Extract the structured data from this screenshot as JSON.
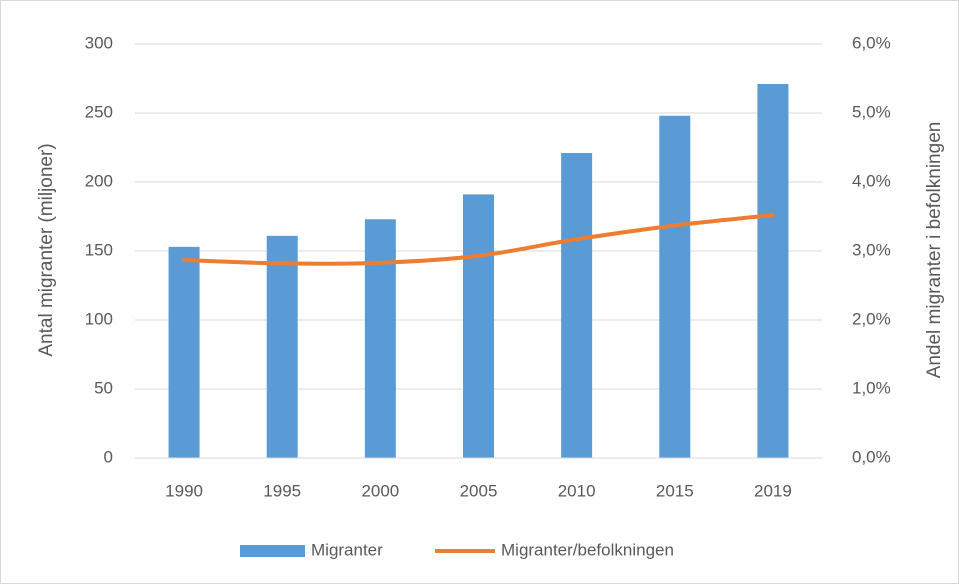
{
  "chart_data": {
    "type": "bar",
    "y_label": "Antal migranter (miljoner)",
    "y2_label": "Andel migranter i befolkningen",
    "categories": [
      "1990",
      "1995",
      "2000",
      "2005",
      "2010",
      "2015",
      "2019"
    ],
    "series": [
      {
        "name": "Migranter",
        "type": "bar",
        "color": "#5b9bd5",
        "values": [
          153,
          161,
          173,
          191,
          221,
          248,
          271
        ]
      },
      {
        "name": "Migranter/befolkningen",
        "type": "line",
        "axis": "y2",
        "color": "#ed7d31",
        "values": [
          2.87,
          2.82,
          2.83,
          2.93,
          3.17,
          3.37,
          3.52
        ]
      }
    ],
    "ylim": [
      0,
      300
    ],
    "yticks": [
      0,
      50,
      100,
      150,
      200,
      250,
      300
    ],
    "y2lim": [
      0,
      6
    ],
    "y2ticks": [
      {
        "value": 0,
        "label": "0,0%"
      },
      {
        "value": 1,
        "label": "1,0%"
      },
      {
        "value": 2,
        "label": "2,0%"
      },
      {
        "value": 3,
        "label": "3,0%"
      },
      {
        "value": 4,
        "label": "4,0%"
      },
      {
        "value": 5,
        "label": "5,0%"
      },
      {
        "value": 6,
        "label": "6,0%"
      }
    ],
    "grid": true,
    "legend": "bottom"
  }
}
